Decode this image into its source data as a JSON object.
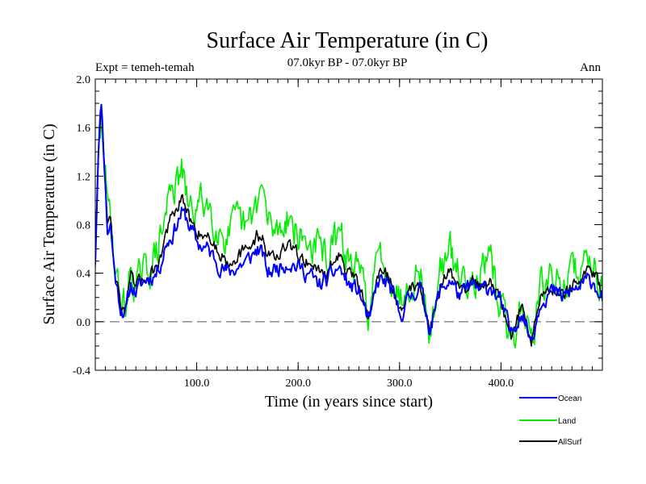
{
  "chart_data": {
    "type": "line",
    "title": "Surface Air Temperature (in C)",
    "subtitle": "07.0kyr BP - 07.0kyr BP",
    "left_label": "Expt = temeh-temah",
    "right_label": "Ann",
    "xlabel": "Time (in years since start)",
    "ylabel": "Surface Air Temperature (in C)",
    "xlim": [
      0,
      500
    ],
    "ylim": [
      -0.4,
      2.0
    ],
    "x_ticks": [
      {
        "value": 100,
        "label": "100.0"
      },
      {
        "value": 200,
        "label": "200.0"
      },
      {
        "value": 300,
        "label": "300.0"
      },
      {
        "value": 400,
        "label": "400.0"
      }
    ],
    "y_ticks": [
      {
        "value": -0.4,
        "label": "-0.4"
      },
      {
        "value": 0.0,
        "label": "0.0"
      },
      {
        "value": 0.4,
        "label": "0.4"
      },
      {
        "value": 0.8,
        "label": "0.8"
      },
      {
        "value": 1.2,
        "label": "1.2"
      },
      {
        "value": 1.6,
        "label": "1.6"
      },
      {
        "value": 2.0,
        "label": "2.0"
      }
    ],
    "reference_line": 0.0,
    "legend_position": "bottom-right",
    "series": [
      {
        "name": "Ocean",
        "color": "#0000ff",
        "anchors": [
          [
            0,
            0.5
          ],
          [
            3,
            1.45
          ],
          [
            6,
            1.82
          ],
          [
            9,
            1.3
          ],
          [
            12,
            0.75
          ],
          [
            15,
            0.8
          ],
          [
            18,
            0.5
          ],
          [
            21,
            0.3
          ],
          [
            25,
            0.12
          ],
          [
            30,
            0.08
          ],
          [
            35,
            0.3
          ],
          [
            40,
            0.25
          ],
          [
            50,
            0.35
          ],
          [
            60,
            0.4
          ],
          [
            65,
            0.5
          ],
          [
            70,
            0.65
          ],
          [
            75,
            0.7
          ],
          [
            80,
            0.8
          ],
          [
            85,
            0.9
          ],
          [
            90,
            0.85
          ],
          [
            95,
            0.75
          ],
          [
            100,
            0.65
          ],
          [
            110,
            0.6
          ],
          [
            120,
            0.5
          ],
          [
            130,
            0.4
          ],
          [
            140,
            0.45
          ],
          [
            150,
            0.5
          ],
          [
            160,
            0.6
          ],
          [
            165,
            0.55
          ],
          [
            170,
            0.4
          ],
          [
            180,
            0.45
          ],
          [
            190,
            0.5
          ],
          [
            200,
            0.45
          ],
          [
            210,
            0.4
          ],
          [
            220,
            0.3
          ],
          [
            230,
            0.35
          ],
          [
            240,
            0.45
          ],
          [
            250,
            0.3
          ],
          [
            260,
            0.25
          ],
          [
            270,
            0.0
          ],
          [
            280,
            0.35
          ],
          [
            290,
            0.3
          ],
          [
            300,
            0.05
          ],
          [
            310,
            0.2
          ],
          [
            320,
            0.3
          ],
          [
            330,
            -0.05
          ],
          [
            340,
            0.25
          ],
          [
            350,
            0.35
          ],
          [
            360,
            0.2
          ],
          [
            370,
            0.3
          ],
          [
            380,
            0.25
          ],
          [
            390,
            0.3
          ],
          [
            400,
            0.15
          ],
          [
            410,
            -0.1
          ],
          [
            420,
            0.1
          ],
          [
            430,
            -0.15
          ],
          [
            440,
            0.2
          ],
          [
            450,
            0.25
          ],
          [
            460,
            0.2
          ],
          [
            470,
            0.25
          ],
          [
            480,
            0.3
          ],
          [
            490,
            0.35
          ],
          [
            500,
            0.2
          ]
        ],
        "noise": 0.06,
        "seed": 11
      },
      {
        "name": "Land",
        "color": "#00ee00",
        "anchors": [
          [
            0,
            0.5
          ],
          [
            3,
            1.3
          ],
          [
            6,
            1.6
          ],
          [
            9,
            1.4
          ],
          [
            12,
            0.9
          ],
          [
            15,
            0.95
          ],
          [
            18,
            0.6
          ],
          [
            21,
            0.35
          ],
          [
            25,
            0.2
          ],
          [
            30,
            0.1
          ],
          [
            35,
            0.45
          ],
          [
            40,
            0.3
          ],
          [
            50,
            0.4
          ],
          [
            60,
            0.55
          ],
          [
            65,
            0.7
          ],
          [
            70,
            0.9
          ],
          [
            75,
            1.2
          ],
          [
            80,
            1.1
          ],
          [
            85,
            1.25
          ],
          [
            90,
            1.0
          ],
          [
            95,
            0.9
          ],
          [
            100,
            0.95
          ],
          [
            110,
            1.0
          ],
          [
            120,
            0.8
          ],
          [
            130,
            0.7
          ],
          [
            140,
            0.8
          ],
          [
            150,
            0.75
          ],
          [
            160,
            1.0
          ],
          [
            165,
            1.1
          ],
          [
            170,
            0.8
          ],
          [
            180,
            0.75
          ],
          [
            190,
            0.9
          ],
          [
            200,
            0.7
          ],
          [
            210,
            0.65
          ],
          [
            220,
            0.6
          ],
          [
            230,
            0.55
          ],
          [
            240,
            0.7
          ],
          [
            250,
            0.5
          ],
          [
            260,
            0.4
          ],
          [
            270,
            0.1
          ],
          [
            280,
            0.55
          ],
          [
            290,
            0.45
          ],
          [
            300,
            0.2
          ],
          [
            310,
            0.35
          ],
          [
            320,
            0.45
          ],
          [
            330,
            -0.15
          ],
          [
            340,
            0.45
          ],
          [
            350,
            0.55
          ],
          [
            360,
            0.35
          ],
          [
            370,
            0.4
          ],
          [
            380,
            0.4
          ],
          [
            390,
            0.45
          ],
          [
            400,
            0.15
          ],
          [
            410,
            -0.2
          ],
          [
            420,
            0.15
          ],
          [
            430,
            -0.15
          ],
          [
            440,
            0.3
          ],
          [
            450,
            0.35
          ],
          [
            460,
            0.3
          ],
          [
            470,
            0.4
          ],
          [
            480,
            0.45
          ],
          [
            490,
            0.55
          ],
          [
            500,
            0.3
          ]
        ],
        "noise": 0.13,
        "seed": 29
      },
      {
        "name": "AllSurf",
        "color": "#000000",
        "anchors": [
          [
            0,
            0.5
          ],
          [
            3,
            1.4
          ],
          [
            6,
            1.75
          ],
          [
            9,
            1.3
          ],
          [
            12,
            0.8
          ],
          [
            15,
            0.85
          ],
          [
            18,
            0.52
          ],
          [
            21,
            0.32
          ],
          [
            25,
            0.15
          ],
          [
            30,
            0.1
          ],
          [
            35,
            0.35
          ],
          [
            40,
            0.28
          ],
          [
            50,
            0.38
          ],
          [
            60,
            0.45
          ],
          [
            65,
            0.55
          ],
          [
            70,
            0.75
          ],
          [
            75,
            0.85
          ],
          [
            80,
            0.9
          ],
          [
            85,
            1.0
          ],
          [
            90,
            0.92
          ],
          [
            95,
            0.8
          ],
          [
            100,
            0.75
          ],
          [
            110,
            0.72
          ],
          [
            120,
            0.6
          ],
          [
            130,
            0.5
          ],
          [
            140,
            0.55
          ],
          [
            150,
            0.58
          ],
          [
            160,
            0.72
          ],
          [
            165,
            0.7
          ],
          [
            170,
            0.55
          ],
          [
            180,
            0.55
          ],
          [
            190,
            0.62
          ],
          [
            200,
            0.55
          ],
          [
            210,
            0.5
          ],
          [
            220,
            0.42
          ],
          [
            230,
            0.42
          ],
          [
            240,
            0.55
          ],
          [
            250,
            0.38
          ],
          [
            260,
            0.3
          ],
          [
            270,
            0.05
          ],
          [
            280,
            0.42
          ],
          [
            290,
            0.36
          ],
          [
            300,
            0.1
          ],
          [
            310,
            0.25
          ],
          [
            320,
            0.35
          ],
          [
            330,
            -0.08
          ],
          [
            340,
            0.3
          ],
          [
            350,
            0.42
          ],
          [
            360,
            0.25
          ],
          [
            370,
            0.33
          ],
          [
            380,
            0.3
          ],
          [
            390,
            0.35
          ],
          [
            400,
            0.15
          ],
          [
            410,
            -0.12
          ],
          [
            420,
            0.12
          ],
          [
            430,
            -0.15
          ],
          [
            440,
            0.23
          ],
          [
            450,
            0.28
          ],
          [
            460,
            0.24
          ],
          [
            470,
            0.3
          ],
          [
            480,
            0.35
          ],
          [
            490,
            0.42
          ],
          [
            500,
            0.24
          ]
        ],
        "noise": 0.05,
        "seed": 47
      }
    ]
  }
}
